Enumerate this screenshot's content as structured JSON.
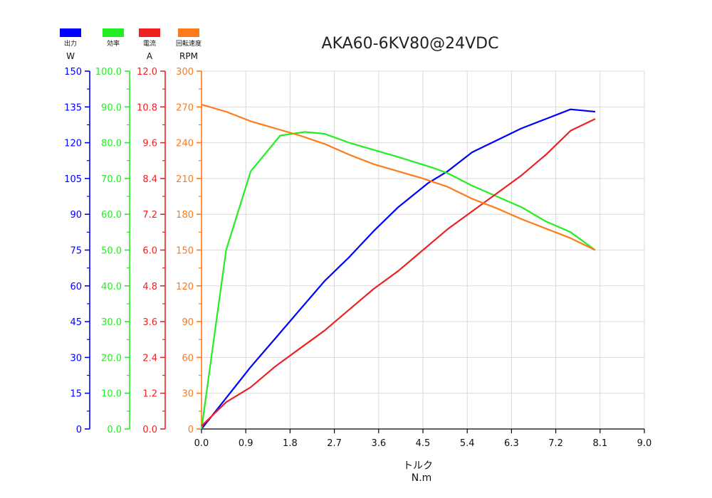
{
  "chart_data": {
    "type": "line",
    "title": "AKA60-6KV80@24VDC",
    "xlabel": "トルク",
    "xunit": "N.m",
    "xlim": [
      0,
      9.0
    ],
    "xticks": [
      "0.0",
      "0.9",
      "1.8",
      "2.7",
      "3.6",
      "4.5",
      "5.4",
      "6.3",
      "7.2",
      "8.1",
      "9.0"
    ],
    "grid": true,
    "legend_position": "top-left",
    "series": [
      {
        "name": "出力",
        "unit": "W",
        "color": "#0000ff",
        "ylim": [
          0,
          150
        ],
        "yticks": [
          "0",
          "15",
          "30",
          "45",
          "60",
          "75",
          "90",
          "105",
          "120",
          "135",
          "150"
        ],
        "x": [
          0.0,
          0.5,
          1.0,
          1.5,
          2.0,
          2.5,
          3.0,
          3.5,
          4.0,
          4.6,
          5.0,
          5.5,
          6.0,
          6.5,
          7.0,
          7.5,
          8.0
        ],
        "y": [
          0,
          13,
          26,
          38,
          50,
          62,
          72,
          83,
          93,
          103,
          108,
          116,
          121,
          126,
          130,
          134,
          133
        ]
      },
      {
        "name": "効率",
        "unit": "",
        "color": "#22ee22",
        "ylim": [
          0,
          100
        ],
        "yticks": [
          "0.0",
          "10.0",
          "20.0",
          "30.0",
          "40.0",
          "50.0",
          "60.0",
          "70.0",
          "80.0",
          "90.0",
          "100.0"
        ],
        "x": [
          0.0,
          0.5,
          1.0,
          1.6,
          2.1,
          2.5,
          3.0,
          3.5,
          4.0,
          4.7,
          5.0,
          5.5,
          6.0,
          6.5,
          7.0,
          7.5,
          8.0
        ],
        "y": [
          0,
          50,
          72,
          82,
          83,
          82.5,
          80,
          78,
          76,
          73,
          71.5,
          68,
          65,
          62,
          58,
          55,
          50
        ]
      },
      {
        "name": "電流",
        "unit": "A",
        "color": "#ee2222",
        "ylim": [
          0,
          12
        ],
        "yticks": [
          "0.0",
          "1.2",
          "2.4",
          "3.6",
          "4.8",
          "6.0",
          "7.2",
          "8.4",
          "9.6",
          "10.8",
          "12.0"
        ],
        "x": [
          0.0,
          0.5,
          1.0,
          1.5,
          2.0,
          2.5,
          3.0,
          3.5,
          4.0,
          4.5,
          5.0,
          5.5,
          6.0,
          6.5,
          7.0,
          7.5,
          8.0
        ],
        "y": [
          0.1,
          0.9,
          1.4,
          2.1,
          2.7,
          3.3,
          4.0,
          4.7,
          5.3,
          6.0,
          6.7,
          7.3,
          7.9,
          8.5,
          9.2,
          10.0,
          10.4
        ]
      },
      {
        "name": "回転速度",
        "unit": "RPM",
        "color": "#ff7a1a",
        "ylim": [
          0,
          300
        ],
        "yticks": [
          "0",
          "30",
          "60",
          "90",
          "120",
          "150",
          "180",
          "210",
          "240",
          "270",
          "300"
        ],
        "x": [
          0.0,
          0.5,
          1.0,
          1.5,
          2.0,
          2.5,
          3.0,
          3.5,
          4.0,
          4.5,
          5.0,
          5.5,
          6.0,
          6.5,
          7.0,
          7.5,
          8.0
        ],
        "y": [
          272,
          266,
          258,
          252,
          246,
          239,
          230,
          222,
          216,
          210,
          203,
          193,
          185,
          176,
          168,
          160,
          150
        ]
      }
    ]
  }
}
